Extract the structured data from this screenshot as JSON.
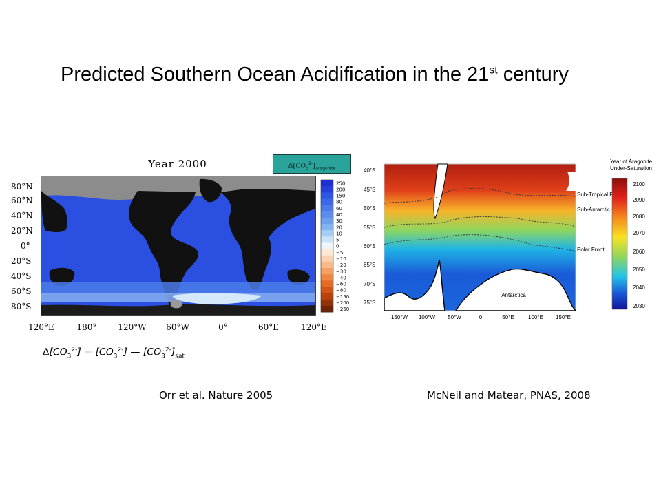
{
  "slide": {
    "title_main": "Predicted Southern Ocean Acidification in the 21",
    "title_sup": "st",
    "title_end": " century",
    "formula": {
      "delta": "∆",
      "co3": "[CO",
      "sub3": "3",
      "sup2": "2-",
      "close": "]",
      "eq": " = ",
      "minus": " — ",
      "sat": "sat"
    },
    "cite_left": "Orr et al. Nature 2005",
    "cite_right": "McNeil and Matear, PNAS, 2008"
  },
  "left_map": {
    "year_label": "Year 2000",
    "colorbar_label_main": "∆[CO",
    "colorbar_label_sub": "3",
    "colorbar_label_sup": "2-",
    "colorbar_label_end": "]",
    "colorbar_label_subscript": "Aragonite",
    "lat_ticks": [
      "80°N",
      "60°N",
      "40°N",
      "20°N",
      "0°",
      "20°S",
      "40°S",
      "60°S",
      "80°S"
    ],
    "lon_ticks": [
      "120°E",
      "180°",
      "120°W",
      "60°W",
      "0°",
      "60°E",
      "120°E"
    ],
    "colorbar_ticks": [
      "250",
      "200",
      "150",
      "80",
      "60",
      "40",
      "30",
      "20",
      "10",
      "5",
      "0",
      "−5",
      "−10",
      "−20",
      "−30",
      "−40",
      "−60",
      "−80",
      "−150",
      "−200",
      "−250"
    ],
    "colorbar_colors": [
      "#1d2fd0",
      "#2540da",
      "#2f55e3",
      "#3a68e8",
      "#4a7beb",
      "#5a8ded",
      "#6d9fef",
      "#84b3f2",
      "#a5cdf6",
      "#c9e4fa",
      "#eef6fd",
      "#fde9d6",
      "#fad2b0",
      "#f7ba88",
      "#f3a062",
      "#ee8540",
      "#e46c24",
      "#d35414",
      "#b8420c",
      "#953308",
      "#6e2506"
    ]
  },
  "right_map": {
    "legend_title_1": "Year of Aragonite",
    "legend_title_2": "Under-Saturation",
    "legend_ticks": [
      "2100",
      "2090",
      "2080",
      "2070",
      "2060",
      "2050",
      "2040",
      "2030"
    ],
    "lat_ticks": [
      "40°S",
      "45°S",
      "50°S",
      "55°S",
      "60°S",
      "65°S",
      "70°S",
      "75°S"
    ],
    "lon_ticks": [
      "150°W",
      "100°W",
      "50°W",
      "0",
      "50°E",
      "100°E",
      "150°E"
    ],
    "front_labels": [
      "Sub-Tropical Front",
      "Sub-Antarctic Front",
      "Polar Front"
    ],
    "continent_label": "Antarctica"
  }
}
